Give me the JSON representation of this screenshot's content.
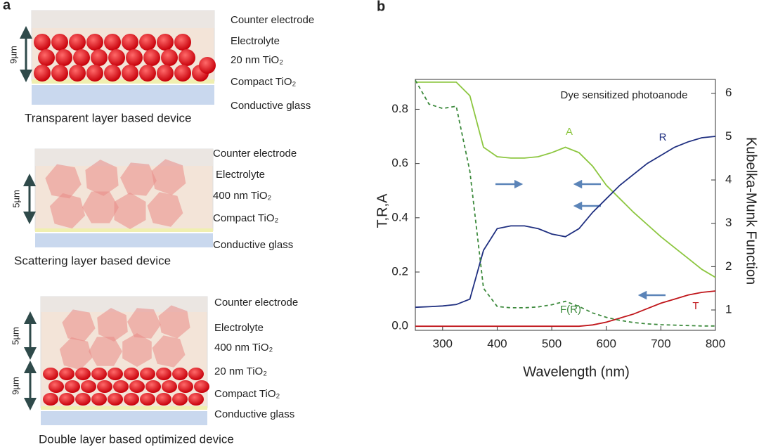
{
  "panel_a": {
    "label": "a",
    "devices": [
      {
        "caption": "Transparent layer based device",
        "thicknesses": [
          "9µm"
        ],
        "layers": [
          "Counter electrode",
          "Electrolyte",
          "20 nm TiO₂",
          "Compact TiO₂",
          "Conductive glass"
        ]
      },
      {
        "caption": "Scattering layer based device",
        "thicknesses": [
          "5µm"
        ],
        "layers": [
          "Counter electrode",
          "Electrolyte",
          "400 nm TiO₂",
          "Compact TiO₂",
          "Conductive glass"
        ]
      },
      {
        "caption": "Double layer based optimized device",
        "thicknesses": [
          "5µm",
          "9µm"
        ],
        "layers": [
          "Counter electrode",
          "Electrolyte",
          "400 nm TiO₂",
          "20 nm TiO₂",
          "Compact TiO₂",
          "Conductive glass"
        ]
      }
    ]
  },
  "chart_data": {
    "type": "line",
    "label": "b",
    "annotation": "Dye sensitized photoanode",
    "xlabel": "Wavelength (nm)",
    "ylabel": "T,R,A",
    "y2label": "Kubelka-Munk Function",
    "x": [
      250,
      275,
      300,
      325,
      350,
      375,
      400,
      425,
      450,
      475,
      500,
      525,
      550,
      575,
      600,
      625,
      650,
      675,
      700,
      725,
      750,
      775,
      800
    ],
    "series": [
      {
        "name": "A",
        "color": "#8cc63f",
        "values": [
          0.9,
          0.9,
          0.9,
          0.9,
          0.85,
          0.66,
          0.625,
          0.62,
          0.62,
          0.625,
          0.64,
          0.66,
          0.64,
          0.59,
          0.52,
          0.47,
          0.42,
          0.375,
          0.33,
          0.29,
          0.25,
          0.21,
          0.18
        ]
      },
      {
        "name": "R",
        "color": "#1f2f80",
        "values": [
          0.07,
          0.072,
          0.075,
          0.08,
          0.1,
          0.28,
          0.36,
          0.37,
          0.37,
          0.36,
          0.34,
          0.33,
          0.36,
          0.42,
          0.47,
          0.52,
          0.56,
          0.6,
          0.63,
          0.66,
          0.68,
          0.695,
          0.7
        ]
      },
      {
        "name": "T",
        "color": "#c0161b",
        "values": [
          0,
          0,
          0,
          0,
          0,
          0,
          0,
          0,
          0,
          0,
          0,
          0,
          0,
          0.005,
          0.015,
          0.03,
          0.045,
          0.065,
          0.085,
          0.1,
          0.115,
          0.125,
          0.13
        ]
      },
      {
        "name": "F(R)",
        "color": "#3d8a3d",
        "dashed": true,
        "axis": "y2",
        "values": [
          6.3,
          5.75,
          5.65,
          5.7,
          4.2,
          1.5,
          1.08,
          1.05,
          1.05,
          1.07,
          1.12,
          1.2,
          1.08,
          0.93,
          0.83,
          0.76,
          0.71,
          0.68,
          0.66,
          0.65,
          0.64,
          0.63,
          0.63
        ]
      }
    ],
    "xlim": [
      250,
      800
    ],
    "xticks": [
      300,
      400,
      500,
      600,
      700,
      800
    ],
    "ylim": [
      -0.015,
      0.91
    ],
    "yticks": [
      {
        "value": 0,
        "label": "0.0"
      },
      0.2,
      0.4,
      0.6,
      0.8
    ],
    "y2lim": [
      0.53,
      6.32
    ],
    "y2ticks": [
      1,
      2,
      3,
      4,
      5,
      6
    ],
    "grid": false
  }
}
